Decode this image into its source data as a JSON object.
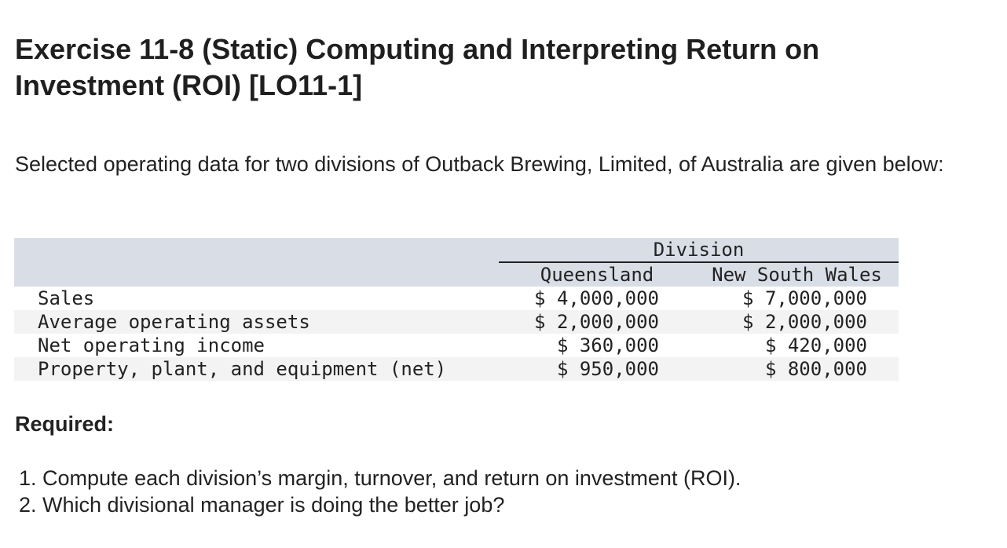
{
  "title": "Exercise 11-8 (Static) Computing and Interpreting Return on Investment (ROI) [LO11-1]",
  "intro": "Selected operating data for two divisions of Outback Brewing, Limited, of Australia are given below:",
  "table": {
    "group_header": "Division",
    "columns": [
      "Queensland",
      "New South Wales"
    ],
    "rows": [
      {
        "label": "Sales",
        "values": [
          "$ 4,000,000",
          "$ 7,000,000"
        ]
      },
      {
        "label": "Average operating assets",
        "values": [
          "$ 2,000,000",
          "$ 2,000,000"
        ]
      },
      {
        "label": "Net operating income",
        "values": [
          "$ 360,000",
          "$ 420,000"
        ]
      },
      {
        "label": "Property, plant, and equipment (net)",
        "values": [
          "$ 950,000",
          "$ 800,000"
        ]
      }
    ]
  },
  "required_label": "Required:",
  "requirements": [
    "1. Compute each division’s margin, turnover, and return on investment (ROI).",
    "2. Which divisional manager is doing the better job?"
  ]
}
